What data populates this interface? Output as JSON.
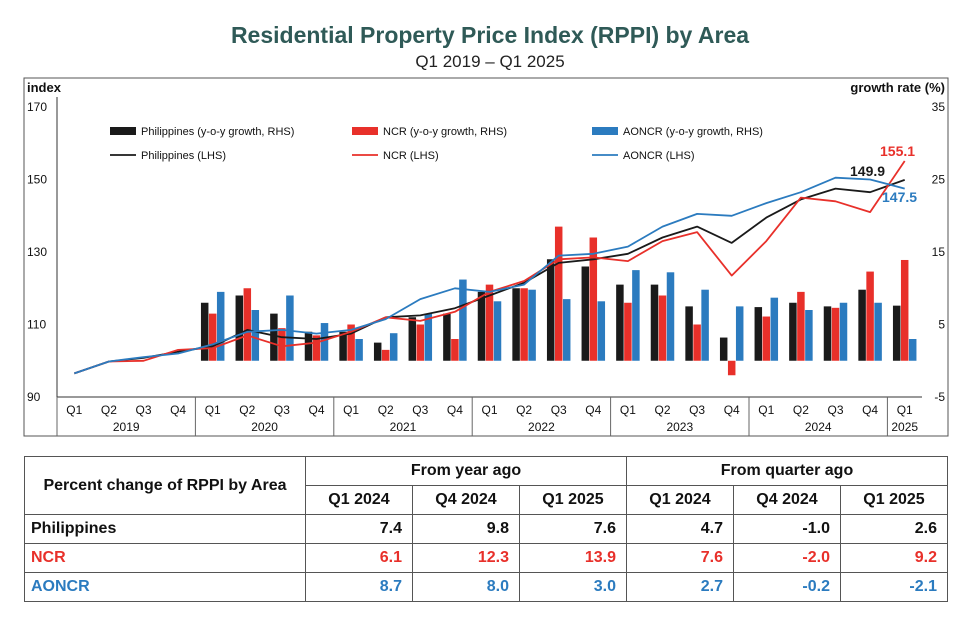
{
  "title": "Residential Property Price Index (RPPI) by Area",
  "subtitle": "Q1 2019 – Q1 2025",
  "colors": {
    "philippines": "#1a1a1a",
    "ncr": "#e8302a",
    "aoncr": "#2b7bbf"
  },
  "chart_data": {
    "type": "bar",
    "left_axis": {
      "label": "index",
      "ticks": [
        "170",
        "150",
        "130",
        "110",
        "90"
      ],
      "min": 90,
      "max": 170
    },
    "right_axis": {
      "label": "growth rate (%)",
      "ticks": [
        "35",
        "25",
        "15",
        "5",
        "-5"
      ],
      "min": -5,
      "max": 35
    },
    "quarter_labels": [
      "Q1",
      "Q2",
      "Q3",
      "Q4",
      "Q1",
      "Q2",
      "Q3",
      "Q4",
      "Q1",
      "Q2",
      "Q3",
      "Q4",
      "Q1",
      "Q2",
      "Q3",
      "Q4",
      "Q1",
      "Q2",
      "Q3",
      "Q4",
      "Q1",
      "Q2",
      "Q3",
      "Q4",
      "Q1"
    ],
    "year_labels": [
      "2019",
      "2020",
      "2021",
      "2022",
      "2023",
      "2024",
      "2025"
    ],
    "legend": [
      "Philippines (y-o-y growth, RHS)",
      "NCR (y-o-y growth, RHS)",
      "AONCR (y-o-y growth, RHS)",
      "Philippines (LHS)",
      "NCR (LHS)",
      "AONCR (LHS)"
    ],
    "bar_start_index": 4,
    "bar_series": [
      {
        "name": "Philippines (y-o-y growth, RHS)",
        "values": [
          8,
          9,
          6.5,
          4,
          4,
          2.5,
          6,
          6.5,
          9.5,
          10,
          14,
          13,
          10.5,
          10.5,
          7.5,
          3.2,
          7.4,
          8,
          7.5,
          9.8,
          7.6
        ]
      },
      {
        "name": "NCR (y-o-y growth, RHS)",
        "values": [
          6.5,
          10,
          4.5,
          3.5,
          5,
          1.5,
          5,
          3,
          10.5,
          10,
          18.5,
          17,
          8,
          9,
          5,
          -2,
          6.1,
          9.5,
          7.3,
          12.3,
          13.9
        ]
      },
      {
        "name": "AONCR (y-o-y growth, RHS)",
        "values": [
          9.5,
          7,
          9,
          5.2,
          3,
          3.8,
          6.5,
          11.2,
          8.2,
          9.8,
          8.5,
          8.2,
          12.5,
          12.2,
          9.8,
          7.5,
          8.7,
          7,
          8,
          8,
          3
        ]
      }
    ],
    "line_series": [
      {
        "name": "Philippines (LHS)",
        "values": [
          96.5,
          99.8,
          100.8,
          102.5,
          104,
          108.5,
          106.5,
          106,
          107.5,
          112,
          112.5,
          114.5,
          118,
          121.5,
          127,
          128,
          129.5,
          134,
          137,
          132.5,
          139.5,
          144.5,
          147.5,
          146.5,
          149.9
        ]
      },
      {
        "name": "NCR (LHS)",
        "values": [
          96.5,
          99.8,
          100,
          103,
          103.5,
          107,
          104,
          105,
          108,
          112,
          111,
          113.5,
          119,
          122,
          128,
          128.5,
          127.5,
          133,
          135.5,
          123.5,
          133,
          145,
          144,
          141,
          155.1
        ]
      },
      {
        "name": "AONCR (LHS)",
        "values": [
          96.5,
          99.8,
          101,
          102,
          104.5,
          108,
          108.5,
          107.5,
          108.5,
          111.5,
          117,
          120,
          119,
          121,
          129,
          129.5,
          131.5,
          137,
          140.5,
          140,
          143.5,
          146.5,
          150.5,
          150,
          147.5
        ]
      }
    ],
    "annotations": [
      "155.1",
      "149.9",
      "147.5"
    ]
  },
  "table": {
    "header_label": "Percent change of RPPI by Area",
    "group_yoy": "From year ago",
    "group_qoq": "From quarter ago",
    "columns": [
      "Q1 2024",
      "Q4 2024",
      "Q1 2025",
      "Q1 2024",
      "Q4 2024",
      "Q1 2025"
    ],
    "rows": [
      {
        "area": "Philippines",
        "values": [
          "7.4",
          "9.8",
          "7.6",
          "4.7",
          "-1.0",
          "2.6"
        ]
      },
      {
        "area": "NCR",
        "values": [
          "6.1",
          "12.3",
          "13.9",
          "7.6",
          "-2.0",
          "9.2"
        ]
      },
      {
        "area": "AONCR",
        "values": [
          "8.7",
          "8.0",
          "3.0",
          "2.7",
          "-0.2",
          "-2.1"
        ]
      }
    ]
  }
}
